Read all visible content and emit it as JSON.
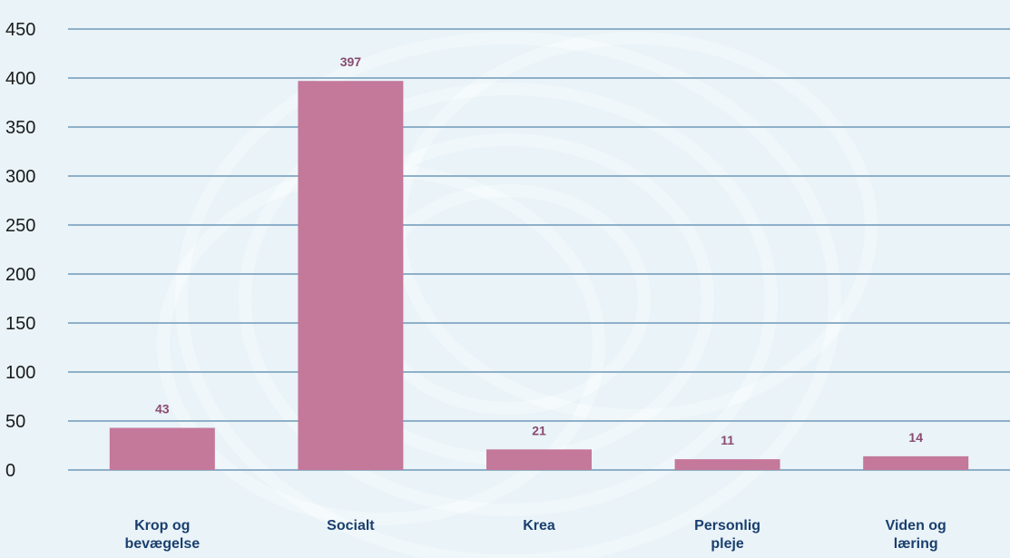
{
  "chart_data": {
    "type": "bar",
    "title": "",
    "xlabel": "",
    "ylabel": "",
    "categories": [
      [
        "Krop og",
        "bevægelse"
      ],
      [
        "Socialt"
      ],
      [
        "Krea"
      ],
      [
        "Personlig",
        "pleje"
      ],
      [
        "Viden og",
        "læring"
      ]
    ],
    "series": [
      {
        "values": [
          43,
          397,
          21,
          11,
          14
        ]
      }
    ],
    "data_labels": [
      "43",
      "397",
      "21",
      "11",
      "14"
    ],
    "ylim": [
      0,
      450
    ],
    "yticks": [
      0,
      50,
      100,
      150,
      200,
      250,
      300,
      350,
      400,
      450
    ],
    "grid": true,
    "legend": "none"
  },
  "colors": {
    "bar": "#c4789a",
    "grid": "#8fb0c8",
    "data_label": "#8a4a70",
    "category_label": "#1a3f6e",
    "background": "#e9f3f8"
  }
}
